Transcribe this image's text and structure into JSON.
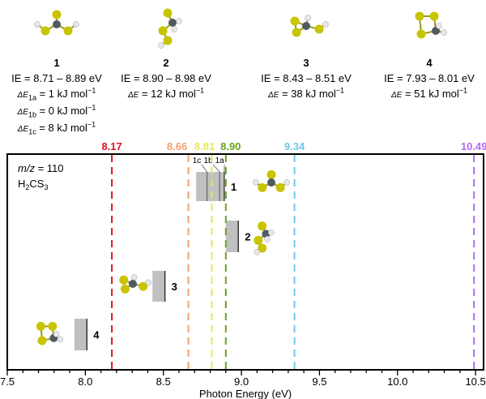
{
  "compounds": [
    {
      "label": "1",
      "ie": "IE = 8.71 – 8.89 eV",
      "energies": [
        {
          "sym": "ΔE",
          "sub": "1a",
          "val": " = 1 kJ mol",
          "sup": "−1"
        },
        {
          "sym": "ΔE",
          "sub": "1b",
          "val": " = 0 kJ mol",
          "sup": "−1"
        },
        {
          "sym": "ΔE",
          "sub": "1c",
          "val": " = 8 kJ mol",
          "sup": "−1"
        }
      ]
    },
    {
      "label": "2",
      "ie": "IE = 8.90 – 8.98 eV",
      "energies": [
        {
          "sym": "ΔE",
          "sub": "",
          "val": " = 12 kJ mol",
          "sup": "−1"
        }
      ]
    },
    {
      "label": "3",
      "ie": "IE = 8.43 – 8.51 eV",
      "energies": [
        {
          "sym": "ΔE",
          "sub": "",
          "val": " = 38 kJ mol",
          "sup": "−1"
        }
      ]
    },
    {
      "label": "4",
      "ie": "IE = 7.93 – 8.01 eV",
      "energies": [
        {
          "sym": "ΔE",
          "sub": "",
          "val": " = 51 kJ mol",
          "sup": "−1"
        }
      ]
    }
  ],
  "chart_data": {
    "type": "bar",
    "xlabel": "Photon Energy (eV)",
    "xlim": [
      7.5,
      10.55
    ],
    "xticks": [
      "7.5",
      "8.0",
      "8.5",
      "9.0",
      "9.5",
      "10.0",
      "10.5"
    ],
    "minor_tick_step": 0.1,
    "annotation": {
      "mz_italic": "m/z",
      "mz_value": " = 110",
      "formula_main": "H",
      "formula_sub1": "2",
      "formula_mid": "CS",
      "formula_sub2": "3"
    },
    "vlines": [
      {
        "value": 8.17,
        "label": "8.17",
        "color": "#e0121e"
      },
      {
        "value": 8.66,
        "label": "8.66",
        "color": "#f4a06a"
      },
      {
        "value": 8.81,
        "label": "8.81",
        "color": "#e8e65a"
      },
      {
        "value": 8.9,
        "label": "8.90",
        "color": "#6aa21e"
      },
      {
        "value": 9.34,
        "label": "9.34",
        "color": "#6ec8f2"
      },
      {
        "value": 10.49,
        "label": "10.49",
        "color": "#b26af2"
      }
    ],
    "bars": [
      {
        "label": "1",
        "range": [
          8.71,
          8.89
        ],
        "conformers": [
          {
            "label": "1c",
            "value": 8.78
          },
          {
            "label": "1b",
            "value": 8.86
          },
          {
            "label": "1a",
            "value": 8.89
          }
        ]
      },
      {
        "label": "2",
        "range": [
          8.9,
          8.98
        ],
        "conformers": []
      },
      {
        "label": "3",
        "range": [
          8.43,
          8.51
        ],
        "conformers": []
      },
      {
        "label": "4",
        "range": [
          7.93,
          8.01
        ],
        "conformers": []
      }
    ],
    "bar_color": "#c0c0c0"
  }
}
